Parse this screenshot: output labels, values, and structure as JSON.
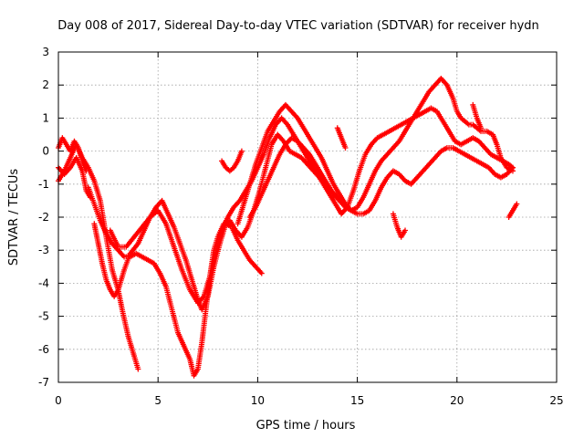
{
  "chart_data": {
    "type": "scatter",
    "title": "Day 008 of 2017, Sidereal Day-to-day VTEC variation (SDTVAR) for receiver hydn",
    "xlabel": "GPS time / hours",
    "ylabel": "SDTVAR / TECUs",
    "xlim": [
      0,
      25
    ],
    "ylim": [
      -7,
      3
    ],
    "xticks": [
      0,
      5,
      10,
      15,
      20,
      25
    ],
    "yticks": [
      3,
      2,
      1,
      0,
      -1,
      -2,
      -3,
      -4,
      -5,
      -6,
      -7
    ],
    "grid": true,
    "marker": "+",
    "color": "#ff0000",
    "series": [
      {
        "x": [
          0.0,
          0.2,
          0.4,
          0.6,
          0.8,
          1.0,
          1.2,
          1.4
        ],
        "y": [
          0.1,
          0.4,
          0.2,
          0.0,
          0.3,
          0.1,
          -0.3,
          -0.6
        ]
      },
      {
        "x": [
          0.0,
          0.3,
          0.6,
          0.9,
          1.2,
          1.4,
          1.6
        ],
        "y": [
          -0.5,
          -0.7,
          -0.5,
          -0.2,
          -0.6,
          -1.2,
          -1.4
        ]
      },
      {
        "x": [
          0.0,
          0.3,
          0.6,
          0.9,
          1.2,
          1.5,
          1.8,
          2.1,
          2.4,
          2.7,
          3.0,
          3.2,
          3.5,
          3.8,
          4.0
        ],
        "y": [
          -0.9,
          -0.6,
          -0.2,
          0.2,
          -0.2,
          -0.5,
          -0.9,
          -1.5,
          -2.6,
          -3.6,
          -4.2,
          -4.8,
          -5.6,
          -6.2,
          -6.6
        ]
      },
      {
        "x": [
          1.8,
          2.0,
          2.2,
          2.4,
          2.6,
          2.8,
          3.0,
          3.3,
          3.6,
          4.0,
          4.3,
          4.6,
          4.9,
          5.2,
          5.5,
          5.8,
          6.1,
          6.4,
          6.7,
          7.0,
          7.2,
          7.5,
          7.8,
          8.1,
          8.4,
          8.7,
          9.0,
          9.3,
          9.6,
          9.9,
          10.2
        ],
        "y": [
          -2.2,
          -2.8,
          -3.4,
          -3.9,
          -4.2,
          -4.4,
          -4.2,
          -3.6,
          -3.1,
          -2.8,
          -2.4,
          -2.0,
          -1.7,
          -1.5,
          -1.9,
          -2.3,
          -2.8,
          -3.3,
          -3.9,
          -4.5,
          -4.8,
          -4.4,
          -3.5,
          -2.8,
          -2.2,
          -2.3,
          -2.7,
          -3.0,
          -3.3,
          -3.5,
          -3.7
        ]
      },
      {
        "x": [
          1.5,
          1.8,
          2.1,
          2.4,
          2.7,
          3.0,
          3.3,
          3.6,
          3.9,
          4.2,
          4.5,
          4.8,
          5.1,
          5.4,
          5.7,
          6.0,
          6.3,
          6.6,
          6.8,
          7.0,
          7.2,
          7.4,
          7.6,
          7.8,
          8.0,
          8.3,
          8.6,
          8.9,
          9.2,
          9.5,
          9.8,
          10.1,
          10.4,
          10.7,
          11.0,
          11.3,
          11.6,
          11.9,
          12.2,
          12.5,
          12.8,
          13.1,
          13.4,
          13.7,
          14.0,
          14.3
        ],
        "y": [
          -1.1,
          -1.6,
          -2.1,
          -2.5,
          -2.8,
          -3.0,
          -3.2,
          -3.2,
          -3.1,
          -3.2,
          -3.3,
          -3.4,
          -3.7,
          -4.1,
          -4.8,
          -5.5,
          -5.9,
          -6.3,
          -6.8,
          -6.6,
          -5.8,
          -4.8,
          -3.8,
          -3.0,
          -2.6,
          -2.2,
          -2.1,
          -2.4,
          -2.6,
          -2.3,
          -1.8,
          -1.2,
          -0.5,
          0.2,
          0.5,
          0.3,
          0.0,
          -0.1,
          -0.2,
          -0.4,
          -0.6,
          -0.8,
          -1.0,
          -1.2,
          -1.4,
          -1.6
        ]
      },
      {
        "x": [
          2.6,
          3.0,
          3.4,
          3.8,
          4.2,
          4.6,
          5.0,
          5.4,
          5.8,
          6.2,
          6.6,
          7.0,
          7.3,
          7.6,
          7.9,
          8.2,
          8.5,
          8.8,
          9.1,
          9.4,
          9.7,
          10.0,
          10.3,
          10.6,
          10.9,
          11.2,
          11.5,
          11.8,
          12.1,
          12.4,
          12.7,
          13.0,
          13.3,
          13.6,
          13.9,
          14.2,
          14.5,
          14.8,
          15.1,
          15.4,
          15.7,
          16.0,
          16.3,
          16.6,
          16.9,
          17.2,
          17.5,
          17.8,
          18.1,
          18.4,
          18.7,
          19.0,
          19.3,
          19.6,
          19.9,
          20.2,
          20.5,
          20.8,
          21.1,
          21.4,
          21.7,
          22.0,
          22.3,
          22.6,
          22.8
        ],
        "y": [
          -2.4,
          -2.9,
          -2.9,
          -2.6,
          -2.3,
          -2.0,
          -1.8,
          -2.2,
          -2.9,
          -3.6,
          -4.2,
          -4.6,
          -4.4,
          -3.8,
          -3.0,
          -2.4,
          -2.0,
          -1.7,
          -1.5,
          -1.2,
          -0.9,
          -0.5,
          -0.1,
          0.4,
          0.8,
          1.0,
          0.8,
          0.5,
          0.2,
          -0.1,
          -0.4,
          -0.7,
          -1.0,
          -1.3,
          -1.6,
          -1.9,
          -1.7,
          -1.2,
          -0.6,
          -0.1,
          0.2,
          0.4,
          0.5,
          0.6,
          0.7,
          0.8,
          0.9,
          1.0,
          1.1,
          1.2,
          1.3,
          1.2,
          0.9,
          0.6,
          0.3,
          0.2,
          0.3,
          0.4,
          0.3,
          0.1,
          -0.1,
          -0.2,
          -0.3,
          -0.4,
          -0.5
        ]
      },
      {
        "x": [
          8.2,
          8.4,
          8.6,
          8.8,
          9.0,
          9.2
        ],
        "y": [
          -0.3,
          -0.5,
          -0.6,
          -0.5,
          -0.3,
          0.0
        ]
      },
      {
        "x": [
          9.0,
          9.3,
          9.6,
          9.9,
          10.2,
          10.5,
          10.8,
          11.1,
          11.4,
          11.7,
          12.0,
          12.3,
          12.6,
          12.9,
          13.2,
          13.5,
          13.8,
          14.1,
          14.4,
          14.7,
          15.0,
          15.3,
          15.6,
          15.9,
          16.2,
          16.5,
          16.8,
          17.1,
          17.4,
          17.7,
          18.0,
          18.3,
          18.6,
          18.9,
          19.2,
          19.5,
          19.8,
          20.0,
          20.2,
          20.4,
          20.6,
          20.8,
          21.0,
          21.2,
          21.5,
          21.8,
          22.0,
          22.2,
          22.5,
          22.8
        ],
        "y": [
          -2.2,
          -1.6,
          -1.0,
          -0.4,
          0.1,
          0.6,
          0.9,
          1.2,
          1.4,
          1.2,
          1.0,
          0.7,
          0.4,
          0.1,
          -0.2,
          -0.6,
          -1.0,
          -1.3,
          -1.6,
          -1.8,
          -1.7,
          -1.4,
          -1.0,
          -0.6,
          -0.3,
          -0.1,
          0.1,
          0.3,
          0.6,
          0.9,
          1.2,
          1.5,
          1.8,
          2.0,
          2.2,
          2.0,
          1.6,
          1.2,
          1.0,
          0.9,
          0.8,
          0.8,
          0.7,
          0.6,
          0.6,
          0.5,
          0.2,
          -0.2,
          -0.5,
          -0.6
        ]
      },
      {
        "x": [
          9.6,
          9.9,
          10.2,
          10.5,
          10.8,
          11.1,
          11.4,
          11.7,
          12.0,
          12.3,
          12.6,
          12.9,
          13.2,
          13.5,
          13.8,
          14.1,
          14.4,
          14.7,
          15.0,
          15.3,
          15.6,
          15.9,
          16.2,
          16.5,
          16.8,
          17.1,
          17.4,
          17.7,
          18.0,
          18.3,
          18.6,
          18.9,
          19.2,
          19.5,
          19.8,
          20.1,
          20.4,
          20.7,
          21.0,
          21.3,
          21.6,
          21.9,
          22.2,
          22.5,
          22.8
        ],
        "y": [
          -2.0,
          -1.7,
          -1.3,
          -0.9,
          -0.5,
          -0.1,
          0.2,
          0.4,
          0.3,
          0.1,
          -0.1,
          -0.4,
          -0.7,
          -1.0,
          -1.3,
          -1.5,
          -1.7,
          -1.8,
          -1.9,
          -1.9,
          -1.8,
          -1.5,
          -1.1,
          -0.8,
          -0.6,
          -0.7,
          -0.9,
          -1.0,
          -0.8,
          -0.6,
          -0.4,
          -0.2,
          0.0,
          0.1,
          0.1,
          0.0,
          -0.1,
          -0.2,
          -0.3,
          -0.4,
          -0.5,
          -0.7,
          -0.8,
          -0.7,
          -0.5
        ]
      },
      {
        "x": [
          14.0,
          14.2,
          14.4
        ],
        "y": [
          0.7,
          0.4,
          0.1
        ]
      },
      {
        "x": [
          16.8,
          17.0,
          17.2,
          17.4
        ],
        "y": [
          -1.9,
          -2.3,
          -2.6,
          -2.4
        ]
      },
      {
        "x": [
          20.8,
          21.0,
          21.2
        ],
        "y": [
          1.4,
          1.0,
          0.7
        ]
      },
      {
        "x": [
          22.6,
          22.8,
          23.0
        ],
        "y": [
          -2.0,
          -1.8,
          -1.6
        ]
      }
    ]
  }
}
